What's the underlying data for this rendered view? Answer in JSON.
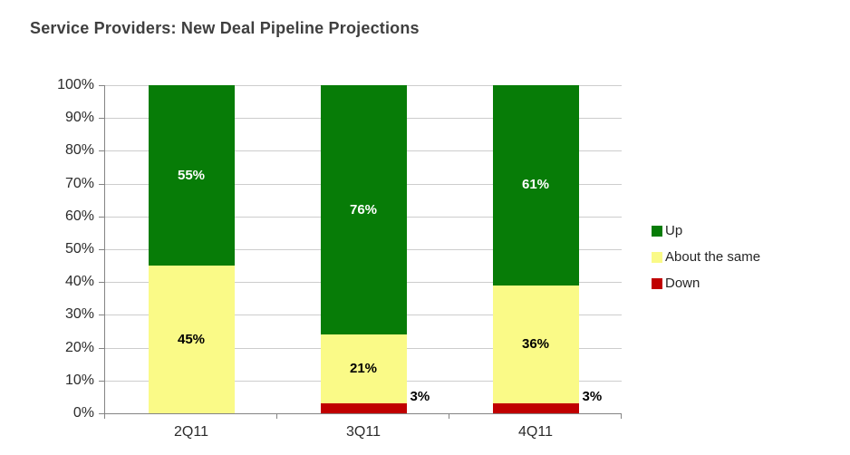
{
  "chart_data": {
    "type": "bar",
    "stacked": true,
    "percent_stacked": true,
    "title": "Service Providers: New Deal Pipeline Projections",
    "categories": [
      "2Q11",
      "3Q11",
      "4Q11"
    ],
    "series": [
      {
        "name": "Up",
        "color": "#077C07",
        "label_color": "#FFFFFF",
        "values": [
          55,
          76,
          61
        ],
        "labels": [
          "55%",
          "76%",
          "61%"
        ]
      },
      {
        "name": "About the same",
        "color": "#FAFA87",
        "label_color": "#000000",
        "values": [
          45,
          21,
          36
        ],
        "labels": [
          "45%",
          "21%",
          "36%"
        ]
      },
      {
        "name": "Down",
        "color": "#C00000",
        "label_color": "#000000",
        "values": [
          0,
          3,
          3
        ],
        "labels": [
          null,
          "3%",
          "3%"
        ]
      }
    ],
    "xlabel": "",
    "ylabel": "",
    "ylim": [
      0,
      100
    ],
    "y_ticks": [
      "0%",
      "10%",
      "20%",
      "30%",
      "40%",
      "50%",
      "60%",
      "70%",
      "80%",
      "90%",
      "100%"
    ],
    "grid": true,
    "legend_position": "right",
    "style_colors": {
      "axis": "#848484",
      "gridline": "#CDCDCD",
      "title_text": "#3F3F3F",
      "tick_text": "#2B2B2B",
      "background": "#FFFFFF"
    }
  }
}
